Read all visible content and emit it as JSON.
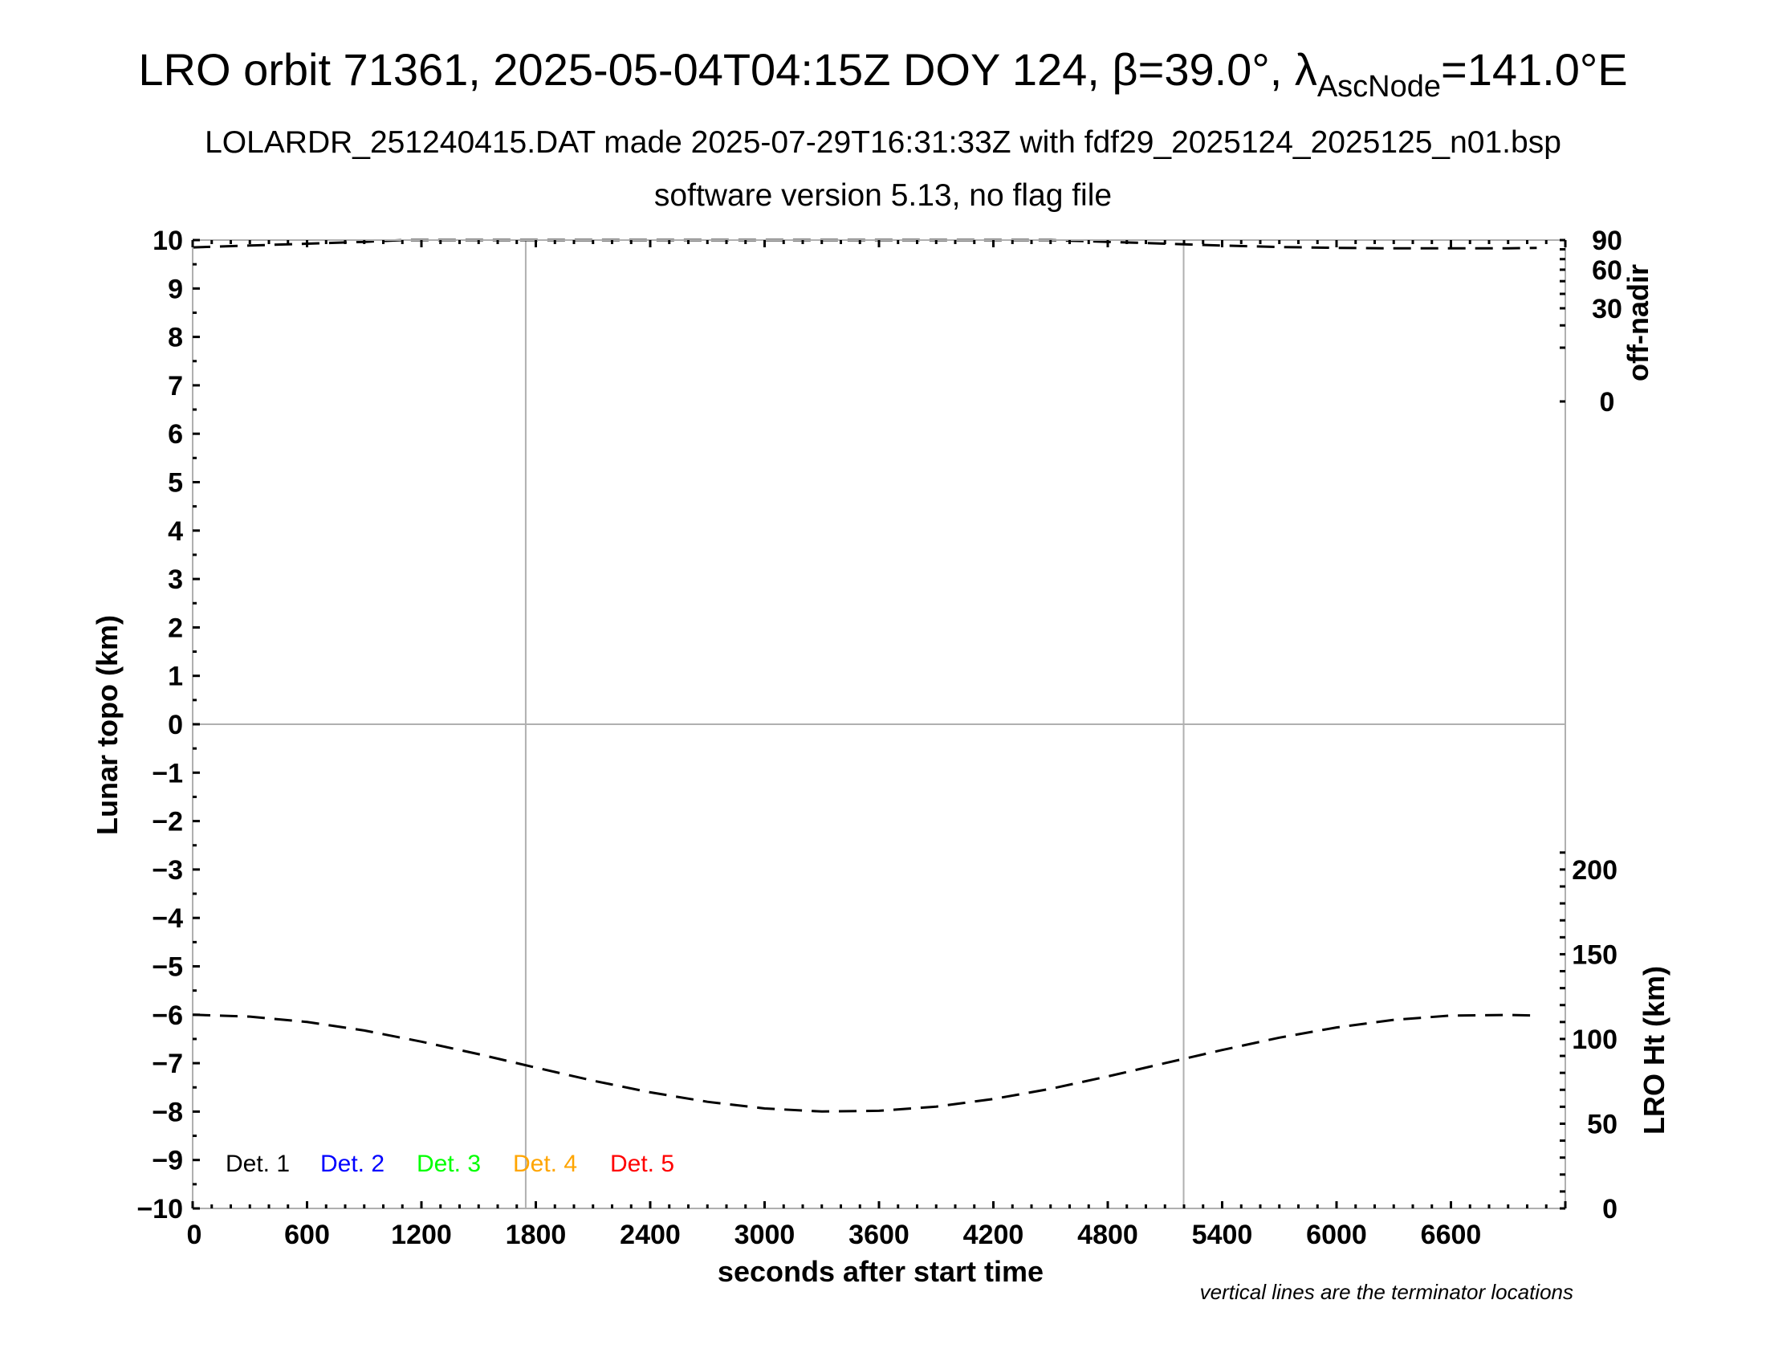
{
  "chart_data": {
    "type": "line",
    "title": {
      "main": "LRO orbit 71361, 2025-05-04T04:15Z DOY 124, β=39.0°, λ",
      "subscript": "AscNode",
      "suffix": "=141.0°E"
    },
    "subtitle": "LOLARDR_251240415.DAT made 2025-07-29T16:31:33Z with fdf29_2025124_2025125_n01.bsp",
    "subtitle2": "software version 5.13, no flag file",
    "xlabel": "seconds after start time",
    "ylabel": "Lunar topo (km)",
    "y2_top_label": "off-nadir",
    "y2_bottom_label": "LRO Ht (km)",
    "note": "vertical lines are the terminator locations",
    "xlim": [
      0,
      7200
    ],
    "ylim": [
      -10,
      10
    ],
    "x_ticks": [
      "0",
      "600",
      "1200",
      "1800",
      "2400",
      "3000",
      "3600",
      "4200",
      "4800",
      "5400",
      "6000",
      "6600"
    ],
    "y_ticks": [
      "10",
      "9",
      "8",
      "7",
      "6",
      "5",
      "4",
      "3",
      "2",
      "1",
      "0",
      "−1",
      "−2",
      "−3",
      "−4",
      "−5",
      "−6",
      "−7",
      "−8",
      "−9",
      "−10"
    ],
    "off_nadir_ticks": [
      "90",
      "60",
      "30",
      "0"
    ],
    "ht_ticks": [
      "200",
      "150",
      "100",
      "50",
      "0"
    ],
    "ht_range_km": [
      0,
      245
    ],
    "terminators_s": [
      1747,
      5198
    ],
    "legend": [
      {
        "label": "Det. 1",
        "color": "#000000"
      },
      {
        "label": "Det. 2",
        "color": "#0000ff"
      },
      {
        "label": "Det. 3",
        "color": "#00ff00"
      },
      {
        "label": "Det. 4",
        "color": "#ffa500"
      },
      {
        "label": "Det. 5",
        "color": "#ff0000"
      }
    ],
    "series": [
      {
        "name": "LRO Ht (km)",
        "x": [
          0,
          300,
          600,
          900,
          1200,
          1500,
          1800,
          2100,
          2400,
          2700,
          3000,
          3300,
          3600,
          3900,
          4200,
          4500,
          4800,
          5100,
          5400,
          5700,
          6000,
          6300,
          6600,
          6900,
          7050
        ],
        "values": [
          114.3,
          113.2,
          110.0,
          105.0,
          98.4,
          91.0,
          83.1,
          75.4,
          68.5,
          62.9,
          59.0,
          57.2,
          57.6,
          60.1,
          64.6,
          70.6,
          77.9,
          85.7,
          93.5,
          100.8,
          106.8,
          111.3,
          113.8,
          114.2,
          113.8
        ]
      },
      {
        "name": "off-nadir (deg)",
        "x": [
          0,
          300,
          600,
          900,
          1100,
          4500,
          4800,
          5100,
          5400,
          5700,
          6000,
          6300,
          6600,
          6900,
          7050
        ],
        "values": [
          82,
          84,
          86,
          88,
          90,
          90,
          88,
          86,
          84,
          82.5,
          81.5,
          81,
          81,
          81,
          81.5
        ]
      }
    ],
    "detector_series": []
  }
}
